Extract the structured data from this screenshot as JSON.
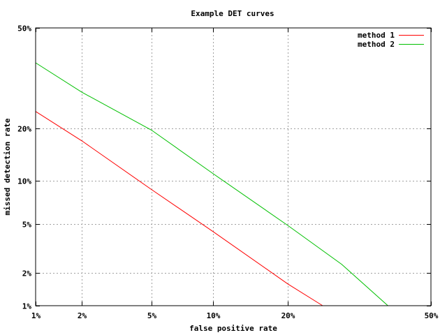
{
  "chart_data": {
    "type": "line",
    "title": "Example DET curves",
    "xlabel": "false positive rate",
    "ylabel": "missed detection rate",
    "scale": "normal-deviate (probit) on both axes",
    "xlim": [
      0.01,
      0.5
    ],
    "ylim": [
      0.01,
      0.5
    ],
    "xticks": [
      {
        "value": 0.01,
        "label": "1%"
      },
      {
        "value": 0.02,
        "label": "2%"
      },
      {
        "value": 0.05,
        "label": "5%"
      },
      {
        "value": 0.1,
        "label": "10%"
      },
      {
        "value": 0.2,
        "label": "20%"
      },
      {
        "value": 0.5,
        "label": "50%"
      }
    ],
    "yticks": [
      {
        "value": 0.01,
        "label": "1%"
      },
      {
        "value": 0.02,
        "label": "2%"
      },
      {
        "value": 0.05,
        "label": "5%"
      },
      {
        "value": 0.1,
        "label": "10%"
      },
      {
        "value": 0.2,
        "label": "20%"
      },
      {
        "value": 0.5,
        "label": "50%"
      }
    ],
    "grid": true,
    "legend_position": "top-right",
    "series": [
      {
        "name": "method 1",
        "color": "#ff0000",
        "points": [
          {
            "x": 0.01,
            "y": 0.242
          },
          {
            "x": 0.02,
            "y": 0.172
          },
          {
            "x": 0.05,
            "y": 0.088
          },
          {
            "x": 0.1,
            "y": 0.044
          },
          {
            "x": 0.2,
            "y": 0.016
          },
          {
            "x": 0.262,
            "y": 0.01
          }
        ]
      },
      {
        "name": "method 2",
        "color": "#00c000",
        "points": [
          {
            "x": 0.01,
            "y": 0.385
          },
          {
            "x": 0.02,
            "y": 0.295
          },
          {
            "x": 0.05,
            "y": 0.196
          },
          {
            "x": 0.1,
            "y": 0.111
          },
          {
            "x": 0.2,
            "y": 0.049
          },
          {
            "x": 0.3,
            "y": 0.0238
          },
          {
            "x": 0.4,
            "y": 0.01
          }
        ]
      }
    ]
  }
}
